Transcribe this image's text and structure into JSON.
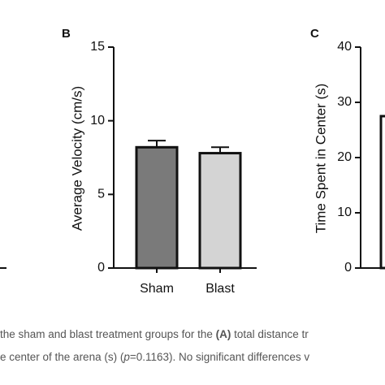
{
  "chart_data": [
    {
      "type": "bar",
      "panel": "B",
      "y_label": "Average Velocity (cm/s)",
      "categories": [
        "Sham",
        "Blast"
      ],
      "values": [
        8.2,
        7.8
      ],
      "errors": [
        0.45,
        0.4
      ],
      "colors": [
        "#7a7a7a",
        "#d4d4d4"
      ],
      "ylim": [
        0,
        15
      ],
      "yticks": [
        0,
        5,
        10,
        15
      ]
    },
    {
      "type": "bar",
      "panel": "C",
      "y_label": "Time Spent in Center (s)",
      "categories": [
        null
      ],
      "values": [
        27.5
      ],
      "colors": [
        "#ffffff"
      ],
      "ylim": [
        0,
        40
      ],
      "yticks": [
        0,
        10,
        20,
        30,
        40
      ]
    }
  ],
  "caption": [
    [
      "the sham and blast treatment groups for the ",
      "(A)",
      " total distance tr"
    ],
    [
      "e center of the arena (s) (",
      "p",
      "=0.1163). No significant differences v"
    ]
  ]
}
